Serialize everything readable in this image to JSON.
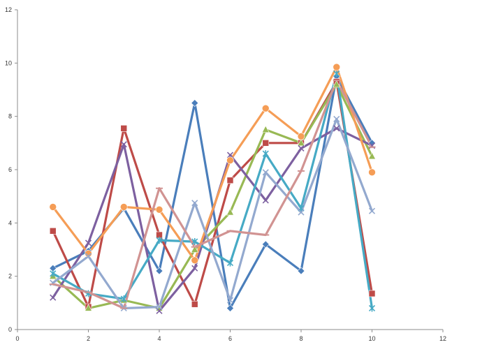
{
  "chart_data": {
    "type": "line",
    "title": "",
    "xlabel": "",
    "ylabel": "",
    "xlim": [
      0,
      12
    ],
    "ylim": [
      0,
      12
    ],
    "xticks": [
      0,
      2,
      4,
      6,
      8,
      10,
      12
    ],
    "yticks": [
      0,
      2,
      4,
      6,
      8,
      10,
      12
    ],
    "grid": false,
    "legend": "none",
    "x": [
      1,
      2,
      3,
      4,
      5,
      6,
      7,
      8,
      9,
      10
    ],
    "series": [
      {
        "color": "#4a7ebb",
        "marker": "diamond",
        "values": [
          2.3,
          2.95,
          4.55,
          2.2,
          8.5,
          0.8,
          3.2,
          2.2,
          9.5,
          7.0
        ]
      },
      {
        "color": "#be4b48",
        "marker": "square",
        "values": [
          3.7,
          0.85,
          7.55,
          3.55,
          0.95,
          5.6,
          7.0,
          7.0,
          9.3,
          1.35
        ]
      },
      {
        "color": "#98b954",
        "marker": "triangle",
        "values": [
          2.0,
          0.8,
          1.1,
          0.8,
          3.0,
          4.4,
          7.5,
          7.0,
          9.2,
          6.5
        ]
      },
      {
        "color": "#7d60a0",
        "marker": "x",
        "values": [
          1.2,
          3.25,
          6.95,
          0.7,
          2.3,
          6.55,
          4.85,
          6.8,
          7.55,
          6.9
        ]
      },
      {
        "color": "#46aac5",
        "marker": "asterisk",
        "values": [
          2.1,
          1.35,
          1.15,
          3.35,
          3.3,
          2.5,
          6.6,
          4.55,
          9.6,
          0.8
        ]
      },
      {
        "color": "#f59d56",
        "marker": "circle",
        "values": [
          4.6,
          2.85,
          4.6,
          4.5,
          2.6,
          6.35,
          8.3,
          7.25,
          9.85,
          5.9
        ]
      },
      {
        "color": "#93a9cf",
        "marker": "x",
        "values": [
          1.75,
          2.75,
          0.8,
          0.85,
          4.75,
          1.1,
          5.9,
          4.4,
          7.9,
          4.45
        ]
      },
      {
        "color": "#d19392",
        "marker": "dash",
        "values": [
          1.7,
          1.4,
          0.8,
          5.3,
          3.1,
          3.7,
          3.55,
          5.95,
          9.35,
          6.85
        ]
      }
    ]
  }
}
